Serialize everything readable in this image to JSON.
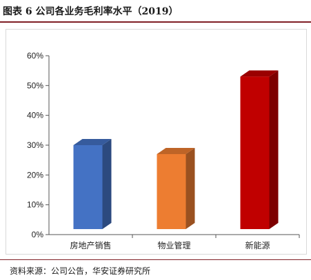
{
  "figure": {
    "title": "图表 6  公司各业务毛利率水平（2019）",
    "source": "资料来源：公司公告，华安证券研究所"
  },
  "chart_data": {
    "type": "bar",
    "categories": [
      "房地产销售",
      "物业管理",
      "新能源"
    ],
    "values": [
      0.3,
      0.27,
      0.53
    ],
    "ylim": [
      0,
      0.6
    ],
    "yticks": [
      "0%",
      "10%",
      "20%",
      "30%",
      "40%",
      "50%",
      "60%"
    ],
    "colors": [
      "#4472C4",
      "#ED7D31",
      "#C00000"
    ],
    "grid": false,
    "legend": false,
    "style": "3d-column"
  }
}
